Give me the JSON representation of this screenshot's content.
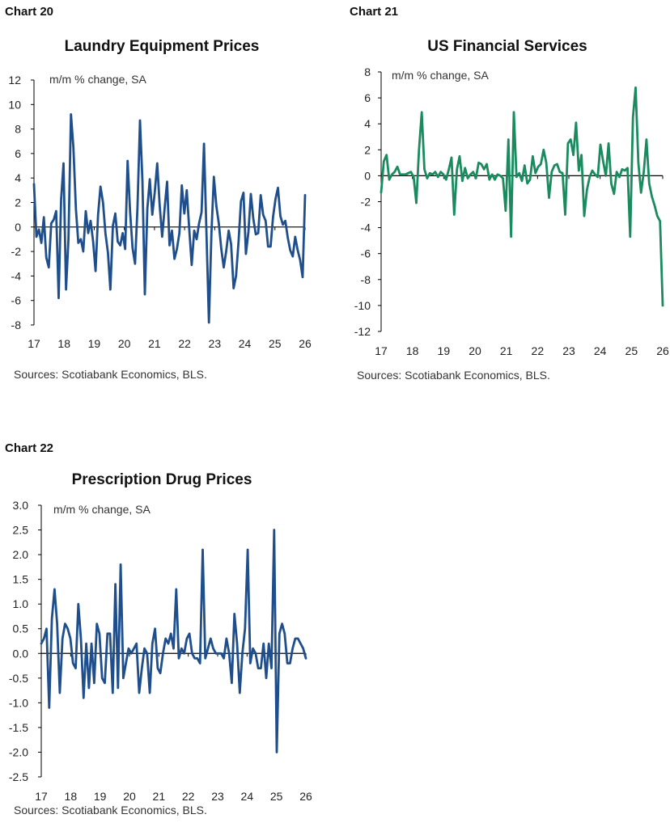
{
  "chart_data": [
    {
      "type": "line",
      "chart_number": "Chart 20",
      "title": "Laundry Equipment Prices",
      "unit_label": "m/m % change, SA",
      "source": "Sources: Scotiabank Economics, BLS.",
      "xlim": [
        2017,
        2026
      ],
      "ylim": [
        -8,
        12
      ],
      "yticks": [
        "12",
        "10",
        "8",
        "6",
        "4",
        "2",
        "0",
        "-2",
        "-4",
        "-6",
        "-8"
      ],
      "ytick_values": [
        12,
        10,
        8,
        6,
        4,
        2,
        0,
        -2,
        -4,
        -6,
        -8
      ],
      "xtick_labels": [
        "17",
        "18",
        "19",
        "20",
        "21",
        "22",
        "23",
        "24",
        "25",
        "26"
      ],
      "xtick_values": [
        2017,
        2018,
        2019,
        2020,
        2021,
        2022,
        2023,
        2024,
        2025,
        2026
      ],
      "color": "#1f4e8c",
      "series": [
        {
          "values": [
            3.5,
            -0.8,
            -0.2,
            -1.3,
            0.8,
            -2.5,
            -3.3,
            0.3,
            0.6,
            1.3,
            -5.8,
            2.2,
            5.2,
            -5.1,
            -1.0,
            9.2,
            6.5,
            1.5,
            -1.3,
            -1.0,
            -2.0,
            1.3,
            -0.5,
            0.5,
            -1.2,
            -3.6,
            1.0,
            3.3,
            2.0,
            -0.5,
            -2.1,
            -5.1,
            0.1,
            1.1,
            -1.2,
            -1.5,
            -0.5,
            -1.8,
            5.4,
            1.2,
            -1.7,
            -3.0,
            1.6,
            8.7,
            3.8,
            -5.5,
            1.5,
            3.9,
            1.0,
            2.8,
            5.2,
            1.8,
            -0.8,
            1.5,
            3.7,
            -1.5,
            -0.3,
            -2.6,
            -1.8,
            -0.5,
            3.4,
            1.1,
            3.0,
            -0.2,
            -3.1,
            -0.3,
            -1.0,
            0.3,
            1.2,
            6.8,
            -0.6,
            -7.8,
            -0.5,
            4.1,
            1.7,
            0.3,
            -1.8,
            -3.3,
            -2.0,
            -0.3,
            -1.4,
            -5.0,
            -4.0,
            -1.2,
            2.1,
            2.8,
            -2.2,
            -0.4,
            2.7,
            0.7,
            -0.6,
            -0.5,
            2.6,
            1.0,
            0.5,
            -1.6,
            -1.6,
            0.8,
            2.3,
            3.2,
            0.9,
            0.2,
            0.5,
            -0.9,
            -1.9,
            -2.4,
            -0.8,
            -1.9,
            -2.7,
            -4.1,
            2.6
          ]
        }
      ]
    },
    {
      "type": "line",
      "chart_number": "Chart 21",
      "title": "US Financial Services",
      "unit_label": "m/m % change, SA",
      "source": "Sources: Scotiabank Economics, BLS.",
      "xlim": [
        2017,
        2026
      ],
      "ylim": [
        -12,
        8
      ],
      "yticks": [
        "8",
        "6",
        "4",
        "2",
        "0",
        "-2",
        "-4",
        "-6",
        "-8",
        "-10",
        "-12"
      ],
      "ytick_values": [
        8,
        6,
        4,
        2,
        0,
        -2,
        -4,
        -6,
        -8,
        -10,
        -12
      ],
      "xtick_labels": [
        "17",
        "18",
        "19",
        "20",
        "21",
        "22",
        "23",
        "24",
        "25",
        "26"
      ],
      "xtick_values": [
        2017,
        2018,
        2019,
        2020,
        2021,
        2022,
        2023,
        2024,
        2025,
        2026
      ],
      "color": "#1a8a5f",
      "series": [
        {
          "values": [
            -1.3,
            1.1,
            1.6,
            -0.3,
            0.1,
            0.3,
            0.7,
            0.1,
            0.1,
            0.1,
            0.2,
            0.3,
            -0.1,
            -2.1,
            2.0,
            4.9,
            0.5,
            -0.2,
            0.2,
            0.1,
            0.3,
            -0.1,
            0.3,
            0.1,
            -0.3,
            0.5,
            1.4,
            -3.0,
            0.5,
            1.5,
            -0.4,
            0.6,
            -0.2,
            0.1,
            0.3,
            -0.2,
            1.0,
            0.9,
            0.5,
            0.9,
            -0.3,
            0.1,
            -0.3,
            0.1,
            0.0,
            -0.2,
            -2.7,
            2.8,
            -4.7,
            4.9,
            -0.1,
            0.2,
            -0.4,
            0.8,
            -0.6,
            -0.3,
            1.5,
            0.2,
            0.7,
            0.9,
            2.0,
            1.0,
            -1.7,
            0.3,
            0.8,
            0.9,
            0.3,
            0.2,
            -3.0,
            2.5,
            2.8,
            1.6,
            4.1,
            0.4,
            1.6,
            -3.1,
            -1.1,
            -0.1,
            0.4,
            0.1,
            -0.1,
            2.4,
            1.1,
            0.0,
            2.5,
            -0.6,
            -1.4,
            0.3,
            -0.1,
            0.5,
            0.4,
            0.6,
            -4.7,
            4.5,
            6.8,
            1.0,
            -1.3,
            0.3,
            2.8,
            -0.6,
            -1.6,
            -2.3,
            -3.1,
            -3.5,
            -10.0
          ]
        }
      ]
    },
    {
      "type": "line",
      "chart_number": "Chart 22",
      "title": "Prescription Drug Prices",
      "unit_label": "m/m % change, SA",
      "source": "Sources: Scotiabank Economics, BLS.",
      "xlim": [
        2017,
        2026
      ],
      "ylim": [
        -2.5,
        3.0
      ],
      "yticks": [
        "3.0",
        "2.5",
        "2.0",
        "1.5",
        "1.0",
        "0.5",
        "0.0",
        "-0.5",
        "-1.0",
        "-1.5",
        "-2.0",
        "-2.5"
      ],
      "ytick_values": [
        3.0,
        2.5,
        2.0,
        1.5,
        1.0,
        0.5,
        0.0,
        -0.5,
        -1.0,
        -1.5,
        -2.0,
        -2.5
      ],
      "xtick_labels": [
        "17",
        "18",
        "19",
        "20",
        "21",
        "22",
        "23",
        "24",
        "25",
        "26"
      ],
      "xtick_values": [
        2017,
        2018,
        2019,
        2020,
        2021,
        2022,
        2023,
        2024,
        2025,
        2026
      ],
      "color": "#1f4e8c",
      "series": [
        {
          "values": [
            0.2,
            0.3,
            0.5,
            -1.1,
            0.7,
            1.3,
            0.6,
            -0.8,
            0.3,
            0.6,
            0.5,
            0.3,
            -0.2,
            -0.3,
            1.0,
            0.3,
            -0.9,
            0.2,
            -0.7,
            0.2,
            -0.6,
            0.6,
            0.4,
            -0.5,
            -0.6,
            0.4,
            0.4,
            -0.8,
            1.4,
            -0.7,
            1.8,
            -0.5,
            -0.2,
            0.1,
            0.0,
            0.1,
            0.2,
            -0.8,
            -0.3,
            0.1,
            0.0,
            -0.8,
            0.2,
            0.5,
            -0.3,
            -0.4,
            0.0,
            0.3,
            0.2,
            0.4,
            0.1,
            1.3,
            -0.1,
            0.1,
            0.0,
            0.3,
            0.4,
            0.0,
            -0.1,
            -0.1,
            -0.2,
            2.1,
            -0.1,
            0.1,
            0.3,
            0.1,
            0.0,
            0.0,
            0.0,
            -0.1,
            0.3,
            0.0,
            -0.6,
            0.8,
            0.2,
            -0.8,
            0.0,
            0.5,
            2.1,
            -0.2,
            0.1,
            0.0,
            -0.3,
            -0.3,
            0.2,
            -0.5,
            0.2,
            -0.3,
            2.5,
            -2.0,
            0.4,
            0.6,
            0.4,
            -0.2,
            -0.2,
            0.1,
            0.3,
            0.3,
            0.2,
            0.1,
            -0.1
          ]
        }
      ]
    }
  ]
}
